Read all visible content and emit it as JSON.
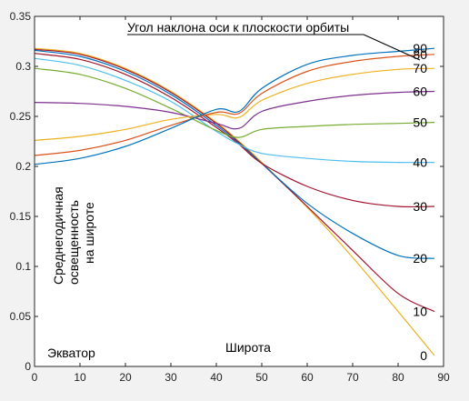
{
  "chart_data": {
    "type": "line",
    "title": "",
    "xlabel": "Широта",
    "ylabel": "",
    "xlim": [
      0,
      90
    ],
    "ylim": [
      0,
      0.35
    ],
    "x_ticks": [
      "0",
      "10",
      "20",
      "30",
      "40",
      "50",
      "60",
      "70",
      "80",
      "90"
    ],
    "y_ticks": [
      "0",
      "0.05",
      "0.1",
      "0.15",
      "0.2",
      "0.25",
      "0.3",
      "0.35"
    ],
    "grid": false,
    "annotations": {
      "legend_title": "Угол наклона оси к плоскости орбиты",
      "y_note": [
        "Среднегодичная",
        "освещенность",
        "на широте"
      ],
      "equator": "Экватор",
      "x_label": "Широта"
    },
    "x": [
      0,
      10,
      20,
      30,
      40,
      45,
      50,
      60,
      70,
      80,
      88
    ],
    "series": [
      {
        "name": "0",
        "color": "#edb120",
        "values": [
          0.318,
          0.313,
          0.298,
          0.275,
          0.244,
          0.225,
          0.204,
          0.159,
          0.109,
          0.055,
          0.011
        ]
      },
      {
        "name": "10",
        "color": "#a2142f",
        "values": [
          0.317,
          0.312,
          0.297,
          0.274,
          0.243,
          0.224,
          0.203,
          0.16,
          0.116,
          0.073,
          0.055
        ]
      },
      {
        "name": "20",
        "color": "#0072bd",
        "values": [
          0.316,
          0.31,
          0.295,
          0.272,
          0.241,
          0.223,
          0.203,
          0.163,
          0.133,
          0.111,
          0.108
        ]
      },
      {
        "name": "30",
        "color": "#a2142f",
        "values": [
          0.313,
          0.307,
          0.292,
          0.269,
          0.239,
          0.222,
          0.203,
          0.18,
          0.166,
          0.16,
          0.16
        ]
      },
      {
        "name": "40",
        "color": "#4dbeee",
        "values": [
          0.308,
          0.301,
          0.286,
          0.265,
          0.235,
          0.222,
          0.213,
          0.208,
          0.205,
          0.204,
          0.204
        ]
      },
      {
        "name": "50",
        "color": "#77ac30",
        "values": [
          0.298,
          0.292,
          0.278,
          0.258,
          0.236,
          0.229,
          0.237,
          0.24,
          0.242,
          0.243,
          0.244
        ]
      },
      {
        "name": "60",
        "color": "#7e2f8e",
        "values": [
          0.264,
          0.263,
          0.26,
          0.254,
          0.243,
          0.238,
          0.255,
          0.265,
          0.271,
          0.274,
          0.275
        ]
      },
      {
        "name": "70",
        "color": "#edb120",
        "values": [
          0.226,
          0.23,
          0.237,
          0.247,
          0.252,
          0.249,
          0.266,
          0.283,
          0.292,
          0.297,
          0.298
        ]
      },
      {
        "name": "80",
        "color": "#d95319",
        "values": [
          0.211,
          0.216,
          0.226,
          0.241,
          0.254,
          0.253,
          0.273,
          0.295,
          0.305,
          0.31,
          0.312
        ]
      },
      {
        "name": "90",
        "color": "#0072bd",
        "values": [
          0.202,
          0.208,
          0.22,
          0.238,
          0.257,
          0.255,
          0.278,
          0.302,
          0.311,
          0.315,
          0.318
        ]
      }
    ]
  }
}
